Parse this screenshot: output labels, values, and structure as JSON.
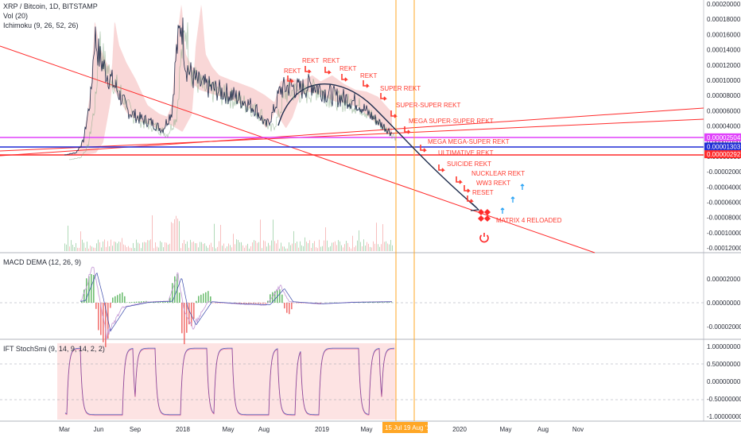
{
  "header": {
    "symbol_line": "XRP / Bitcoin, 1D, BITSTAMP",
    "vol_label": "Vol (20)",
    "ichimoku_label": "Ichimoku (9, 26, 52, 26)",
    "macd_label": "MACD DEMA (12, 26, 9)",
    "stoch_label": "IFT StochSmi (9, 14, 9, 14, 2, 2)"
  },
  "colors": {
    "price": "#1f2d4d",
    "cloud_red": "#f4b6b6",
    "cloud_green": "#c9e4c9",
    "trend_red": "#ff2a2a",
    "magenta": "#e040fb",
    "blue_line": "#1e2bd6",
    "annotation": "#ff3b30",
    "vertical_orange": "#ffa726",
    "arrow_blue": "#29a3f5",
    "stoch_line": "#5c6bc0",
    "macd_line": "#c8a0d8"
  },
  "chart_data": [
    {
      "type": "line",
      "title": "XRP / Bitcoin, 1D, BITSTAMP",
      "x_ticks": [
        "Mar",
        "Jun",
        "Sep",
        "2018",
        "May",
        "Aug",
        "2019",
        "May",
        "2020",
        "May",
        "Aug",
        "Nov"
      ],
      "y_ticks": [
        "0.00020000",
        "0.00018000",
        "0.00016000",
        "0.00014000",
        "0.00012000",
        "0.00010000",
        "0.00008000",
        "0.00006000",
        "0.00004000",
        "0.00002000",
        "0.00000000",
        "-0.00002000",
        "-0.00004000",
        "-0.00006000",
        "-0.00008000",
        "-0.00010000",
        "-0.00012000"
      ],
      "ylim": [
        -0.00012,
        0.0002
      ],
      "price_labels": [
        {
          "value": 2.504e-05,
          "text": "0.00002504",
          "color": "#e040fb"
        },
        {
          "value": 1.303e-05,
          "text": "0.00001303",
          "color": "#1e2bd6"
        },
        {
          "value": 2.92e-06,
          "text": "0.00000292",
          "color": "#ff2a2a"
        }
      ],
      "series": [
        {
          "x": [
            "2017-03-01",
            "2017-04-01",
            "2017-04-20",
            "2017-05-10",
            "2017-05-20",
            "2017-06-01",
            "2017-06-20",
            "2017-07-15",
            "2017-08-15",
            "2017-09-15",
            "2017-10-15",
            "2017-11-15",
            "2017-12-10",
            "2017-12-20",
            "2018-01-04",
            "2018-01-15",
            "2018-02-01",
            "2018-02-20",
            "2018-03-20",
            "2018-04-20",
            "2018-05-20",
            "2018-06-20",
            "2018-07-20",
            "2018-08-15",
            "2018-09-01",
            "2018-09-22",
            "2018-10-15",
            "2018-11-15",
            "2018-12-15",
            "2019-01-15",
            "2019-02-15",
            "2019-03-15",
            "2019-04-15",
            "2019-05-15",
            "2019-06-15",
            "2019-07-15"
          ],
          "values": [
            2e-06,
            5e-06,
            2e-05,
            8e-05,
            0.00016,
            0.00013,
            0.00011,
            9e-05,
            6e-05,
            5e-05,
            4.5e-05,
            3.5e-05,
            6e-05,
            0.00013,
            0.00018,
            0.00012,
            0.000105,
            9.5e-05,
            9e-05,
            8.5e-05,
            8e-05,
            7.2e-05,
            6.2e-05,
            4e-05,
            5.5e-05,
            8.8e-05,
            9.2e-05,
            8.8e-05,
            9.5e-05,
            8.5e-05,
            7.8e-05,
            7.6e-05,
            7e-05,
            5.5e-05,
            4.2e-05,
            3e-05
          ]
        }
      ]
    },
    {
      "type": "line",
      "title": "MACD DEMA (12, 26, 9)",
      "y_ticks": [
        "0.00002000",
        "0.00000000",
        "-0.00002000"
      ],
      "ylim": [
        -3e-05,
        3.2e-05
      ],
      "series": [
        {
          "x": [
            "2017-03-01",
            "2017-04-15",
            "2017-05-15",
            "2017-06-01",
            "2017-06-20",
            "2017-08-01",
            "2017-10-01",
            "2017-12-01",
            "2017-12-25",
            "2018-01-10",
            "2018-02-01",
            "2018-03-15",
            "2018-06-01",
            "2018-08-15",
            "2018-09-22",
            "2018-10-15",
            "2019-01-01",
            "2019-04-01",
            "2019-07-15"
          ],
          "values": [
            0,
            2e-06,
            3e-05,
            5e-06,
            -2.8e-05,
            -4e-06,
            5e-07,
            1.5e-06,
            2.5e-05,
            -5e-06,
            -2.2e-05,
            1e-06,
            -1e-06,
            -2e-06,
            1.4e-05,
            1e-06,
            -1e-06,
            5e-07,
            1e-06
          ]
        }
      ]
    },
    {
      "type": "line",
      "title": "IFT StochSmi (9, 14, 9, 14, 2, 2)",
      "y_ticks": [
        "1.00000000",
        "0.50000000",
        "0.00000000",
        "-0.50000000",
        "-1.00000000"
      ],
      "ylim": [
        -1.1,
        1.05
      ]
    }
  ],
  "annotations": [
    {
      "text": "REKT"
    },
    {
      "text": "REKT"
    },
    {
      "text": "REKT"
    },
    {
      "text": "REKT"
    },
    {
      "text": "REKT"
    },
    {
      "text": "REKT"
    },
    {
      "text": "SUPER REKT"
    },
    {
      "text": "SUPER-SUPER REKT"
    },
    {
      "text": "MEGA SUPER-SUPER REKT"
    },
    {
      "text": "MEGA MEGA-SUPER REKT"
    },
    {
      "text": "ULTIMATIVE REKT"
    },
    {
      "text": "SUICIDE REKT"
    },
    {
      "text": "NUCKLEAR REKT"
    },
    {
      "text": "WW3 REKT"
    },
    {
      "text": "RESET"
    },
    {
      "text": "MATRIX 4 RELOADED"
    }
  ],
  "date_badge": "15 Jul 19  Aug '19",
  "icons": [
    "down-arrow-icon",
    "up-arrow-icon",
    "dropbox-icon",
    "power-icon"
  ]
}
